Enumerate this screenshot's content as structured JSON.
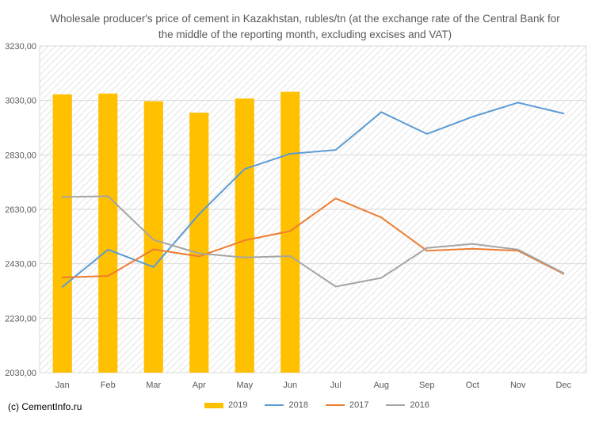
{
  "chart_data": {
    "type": "bar+line",
    "title": "Wholesale producer's price of cement in Kazakhstan, rubles/tn (at the exchange rate of the Central Bank for the middle of the reporting month, excluding excises and VAT)",
    "categories": [
      "Jan",
      "Feb",
      "Mar",
      "Apr",
      "May",
      "Jun",
      "Jul",
      "Aug",
      "Sep",
      "Oct",
      "Nov",
      "Dec"
    ],
    "ylim": [
      2030,
      3230
    ],
    "yticks": [
      2030,
      2230,
      2430,
      2630,
      2830,
      3030,
      3230
    ],
    "ytick_labels": [
      "2030,00",
      "2230,00",
      "2430,00",
      "2630,00",
      "2830,00",
      "3030,00",
      "3230,00"
    ],
    "grid": true,
    "legend_position": "bottom",
    "series": [
      {
        "name": "2019",
        "kind": "bar",
        "color": "#FFC000",
        "values": [
          3052,
          3055,
          3027,
          2985,
          3037,
          3062,
          null,
          null,
          null,
          null,
          null,
          null
        ]
      },
      {
        "name": "2018",
        "kind": "line",
        "color": "#5B9BD5",
        "values": [
          2345,
          2482,
          2418,
          2612,
          2778,
          2834,
          2848,
          2987,
          2907,
          2970,
          3022,
          2982
        ]
      },
      {
        "name": "2017",
        "kind": "line",
        "color": "#ED7D31",
        "values": [
          2380,
          2385,
          2483,
          2457,
          2516,
          2550,
          2670,
          2600,
          2478,
          2485,
          2478,
          2393
        ]
      },
      {
        "name": "2016",
        "kind": "line",
        "color": "#A5A5A5",
        "values": [
          2675,
          2678,
          2518,
          2468,
          2453,
          2458,
          2346,
          2378,
          2488,
          2503,
          2482,
          2396
        ]
      }
    ]
  },
  "source_note": "(c) CementInfo.ru"
}
